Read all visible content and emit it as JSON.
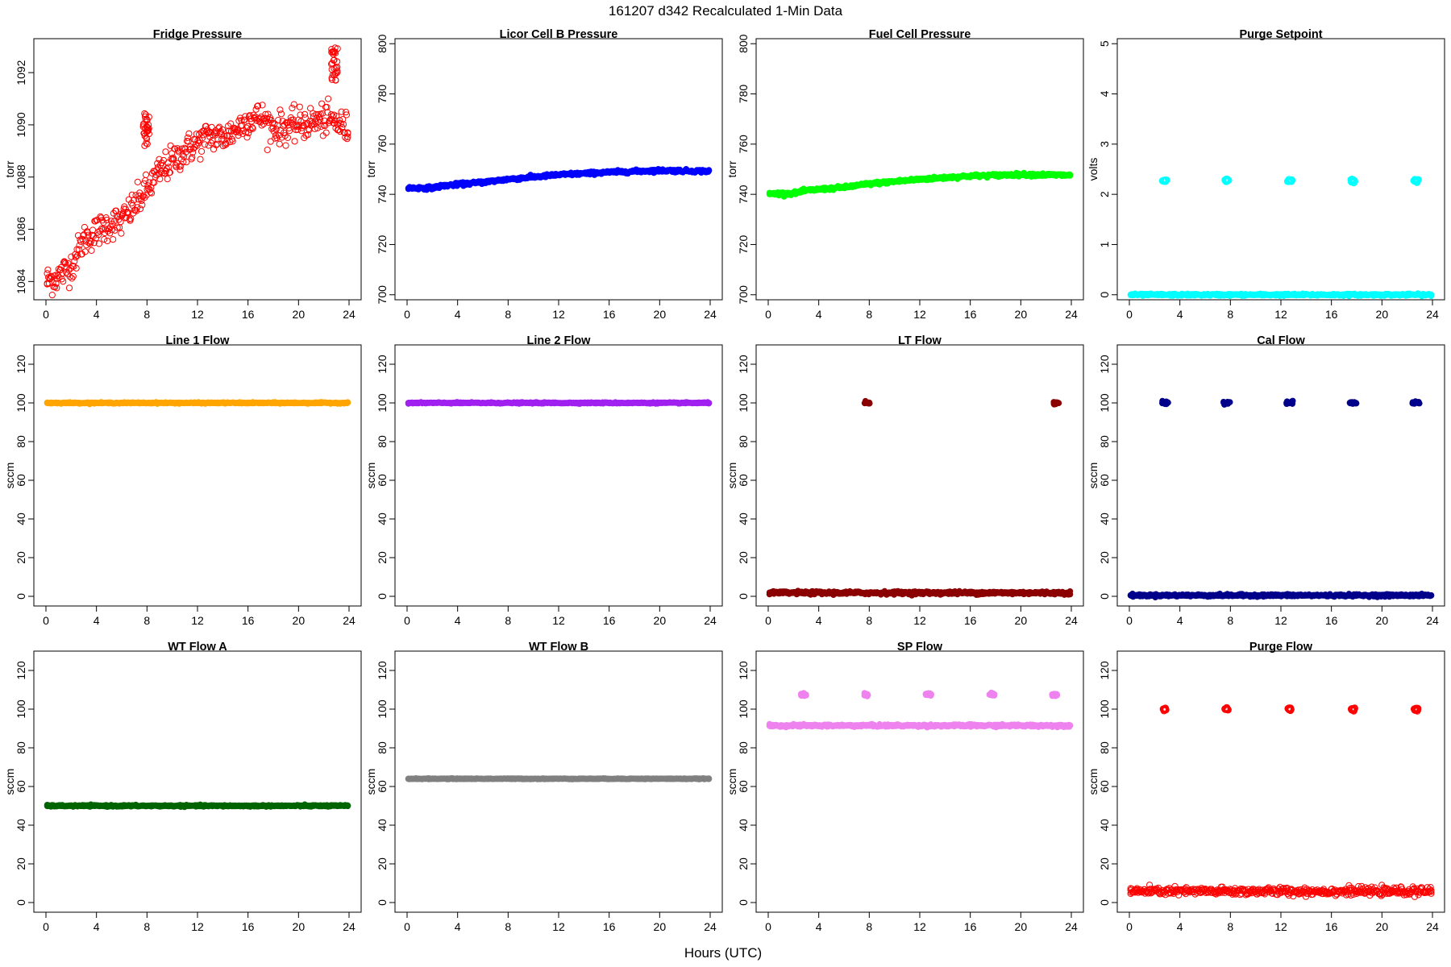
{
  "figure": {
    "title": "161207   d342   Recalculated 1-Min Data",
    "xlabel": "Hours (UTC)"
  },
  "chart_data": [
    {
      "type": "scatter",
      "title": "Fridge Pressure",
      "ylabel": "torr",
      "color": "#ff0000",
      "marker": "open-circle",
      "xlim": [
        0,
        24
      ],
      "ylim": [
        1083.3,
        1093.3
      ],
      "xticks": [
        0,
        4,
        8,
        12,
        16,
        20,
        24
      ],
      "yticks": [
        1084,
        1086,
        1088,
        1090,
        1092
      ],
      "trend": [
        [
          0,
          1084.0
        ],
        [
          1,
          1084.2
        ],
        [
          2,
          1084.6
        ],
        [
          3,
          1085.6
        ],
        [
          4,
          1085.9
        ],
        [
          5,
          1086.2
        ],
        [
          6,
          1086.3
        ],
        [
          7,
          1086.9
        ],
        [
          8,
          1087.5
        ],
        [
          9,
          1088.2
        ],
        [
          10,
          1088.6
        ],
        [
          11,
          1089.0
        ],
        [
          12,
          1089.3
        ],
        [
          13,
          1089.6
        ],
        [
          14,
          1089.5
        ],
        [
          15,
          1089.8
        ],
        [
          16,
          1090.2
        ],
        [
          17,
          1090.3
        ],
        [
          18,
          1089.9
        ],
        [
          19,
          1089.9
        ],
        [
          20,
          1090.0
        ],
        [
          21,
          1090.1
        ],
        [
          22,
          1090.2
        ],
        [
          23,
          1090.1
        ],
        [
          24,
          1089.8
        ]
      ],
      "noise": 0.3,
      "spikes": [
        {
          "x": [
            7.7,
            8.2
          ],
          "y": [
            1089.2,
            1090.5
          ]
        },
        {
          "x": [
            22.6,
            23.1
          ],
          "y": [
            1091.6,
            1093.0
          ]
        }
      ]
    },
    {
      "type": "scatter",
      "title": "Licor Cell B Pressure",
      "ylabel": "torr",
      "color": "#0000ff",
      "marker": "filled",
      "xlim": [
        0,
        24
      ],
      "ylim": [
        698,
        802
      ],
      "xticks": [
        0,
        4,
        8,
        12,
        16,
        20,
        24
      ],
      "yticks": [
        700,
        720,
        740,
        760,
        780,
        800
      ],
      "trend": [
        [
          0,
          742.5
        ],
        [
          2,
          742.6
        ],
        [
          3,
          743.5
        ],
        [
          6,
          744.8
        ],
        [
          8,
          746.0
        ],
        [
          12,
          747.8
        ],
        [
          16,
          748.8
        ],
        [
          20,
          749.5
        ],
        [
          24,
          749.2
        ]
      ],
      "noise": 0.3
    },
    {
      "type": "scatter",
      "title": "Fuel Cell Pressure",
      "ylabel": "torr",
      "color": "#00ff00",
      "marker": "filled",
      "xlim": [
        0,
        24
      ],
      "ylim": [
        698,
        802
      ],
      "xticks": [
        0,
        4,
        8,
        12,
        16,
        20,
        24
      ],
      "yticks": [
        700,
        720,
        740,
        760,
        780,
        800
      ],
      "trend": [
        [
          0,
          740.2
        ],
        [
          2,
          740.4
        ],
        [
          3,
          741.5
        ],
        [
          6,
          742.8
        ],
        [
          8,
          744.2
        ],
        [
          12,
          746.0
        ],
        [
          16,
          747.3
        ],
        [
          20,
          747.9
        ],
        [
          24,
          747.6
        ]
      ],
      "noise": 0.3
    },
    {
      "type": "scatter",
      "title": "Purge Setpoint",
      "ylabel": "volts",
      "color": "#00ffff",
      "marker": "filled",
      "xlim": [
        0,
        24
      ],
      "ylim": [
        -0.1,
        5.1
      ],
      "xticks": [
        0,
        4,
        8,
        12,
        16,
        20,
        24
      ],
      "yticks": [
        0,
        1,
        2,
        3,
        4,
        5
      ],
      "base": 0,
      "noise": 0.01,
      "bursts": {
        "centers": [
          2.8,
          7.7,
          12.7,
          17.7,
          22.7
        ],
        "y": 2.27,
        "width": 0.35,
        "shape": "open"
      }
    },
    {
      "type": "scatter",
      "title": "Line 1 Flow",
      "ylabel": "sccm",
      "color": "#ffa500",
      "marker": "filled",
      "xlim": [
        0,
        24
      ],
      "ylim": [
        -5,
        130
      ],
      "xticks": [
        0,
        4,
        8,
        12,
        16,
        20,
        24
      ],
      "yticks": [
        0,
        20,
        40,
        60,
        80,
        100,
        120
      ],
      "base": 100,
      "noise": 0.15
    },
    {
      "type": "scatter",
      "title": "Line 2 Flow",
      "ylabel": "sccm",
      "color": "#a020f0",
      "marker": "filled",
      "xlim": [
        0,
        24
      ],
      "ylim": [
        -5,
        130
      ],
      "xticks": [
        0,
        4,
        8,
        12,
        16,
        20,
        24
      ],
      "yticks": [
        0,
        20,
        40,
        60,
        80,
        100,
        120
      ],
      "base": 100,
      "noise": 0.15
    },
    {
      "type": "scatter",
      "title": "LT Flow",
      "ylabel": "sccm",
      "color": "#8b0000",
      "marker": "filled",
      "xlim": [
        0,
        24
      ],
      "ylim": [
        -5,
        130
      ],
      "xticks": [
        0,
        4,
        8,
        12,
        16,
        20,
        24
      ],
      "yticks": [
        0,
        20,
        40,
        60,
        80,
        100,
        120
      ],
      "base": 1.8,
      "noise": 0.4,
      "bursts": {
        "centers": [
          7.8,
          22.8
        ],
        "y": 100,
        "width": 0.45,
        "shape": "filled"
      }
    },
    {
      "type": "scatter",
      "title": "Cal Flow",
      "ylabel": "sccm",
      "color": "#00008b",
      "marker": "filled",
      "xlim": [
        0,
        24
      ],
      "ylim": [
        -5,
        130
      ],
      "xticks": [
        0,
        4,
        8,
        12,
        16,
        20,
        24
      ],
      "yticks": [
        0,
        20,
        40,
        60,
        80,
        100,
        120
      ],
      "base": 0.5,
      "noise": 0.3,
      "bursts": {
        "centers": [
          2.8,
          7.7,
          12.7,
          17.7,
          22.7
        ],
        "y": 100,
        "width": 0.55,
        "shape": "filled"
      }
    },
    {
      "type": "scatter",
      "title": "WT Flow A",
      "ylabel": "sccm",
      "color": "#006400",
      "marker": "filled",
      "xlim": [
        0,
        24
      ],
      "ylim": [
        -5,
        130
      ],
      "xticks": [
        0,
        4,
        8,
        12,
        16,
        20,
        24
      ],
      "yticks": [
        0,
        20,
        40,
        60,
        80,
        100,
        120
      ],
      "base": 50,
      "noise": 0.2
    },
    {
      "type": "scatter",
      "title": "WT Flow B",
      "ylabel": "sccm",
      "color": "#808080",
      "marker": "filled",
      "xlim": [
        0,
        24
      ],
      "ylim": [
        -5,
        130
      ],
      "xticks": [
        0,
        4,
        8,
        12,
        16,
        20,
        24
      ],
      "yticks": [
        0,
        20,
        40,
        60,
        80,
        100,
        120
      ],
      "base": 64,
      "noise": 0.1
    },
    {
      "type": "scatter",
      "title": "SP Flow",
      "ylabel": "sccm",
      "color": "#ee82ee",
      "marker": "filled",
      "xlim": [
        0,
        24
      ],
      "ylim": [
        -5,
        130
      ],
      "xticks": [
        0,
        4,
        8,
        12,
        16,
        20,
        24
      ],
      "yticks": [
        0,
        20,
        40,
        60,
        80,
        100,
        120
      ],
      "base": 91.5,
      "noise": 0.3,
      "bursts": {
        "centers": [
          2.8,
          7.7,
          12.7,
          17.7,
          22.7
        ],
        "y": 107.5,
        "width": 0.45,
        "shape": "filled"
      }
    },
    {
      "type": "scatter",
      "title": "Purge Flow",
      "ylabel": "sccm",
      "color": "#ff0000",
      "marker": "open-circle",
      "xlim": [
        0,
        24
      ],
      "ylim": [
        -5,
        130
      ],
      "xticks": [
        0,
        4,
        8,
        12,
        16,
        20,
        24
      ],
      "yticks": [
        0,
        20,
        40,
        60,
        80,
        100,
        120
      ],
      "base": 5.8,
      "noise": 1.0,
      "bursts": {
        "centers": [
          2.8,
          7.7,
          12.7,
          17.7,
          22.7
        ],
        "y": 100,
        "width": 0.3,
        "shape": "open"
      }
    }
  ]
}
